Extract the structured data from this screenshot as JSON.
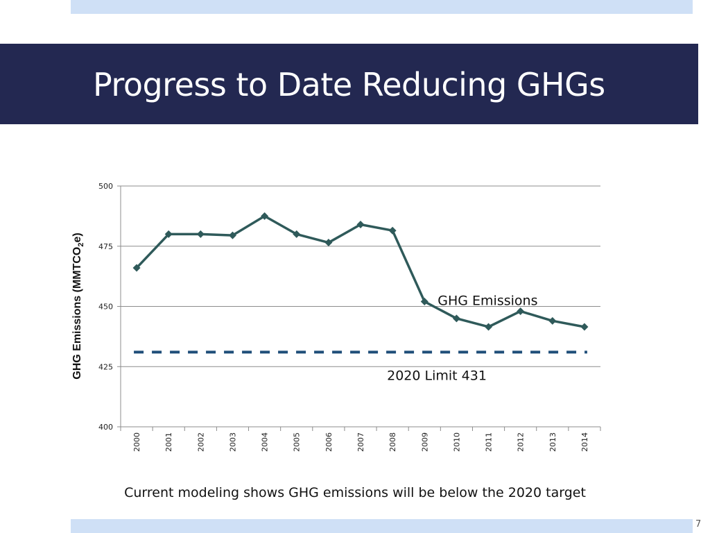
{
  "slide": {
    "title": "Progress to Date Reducing GHGs",
    "subtitle": "Current modeling shows GHG emissions will be below the 2020 target",
    "page_number": "7",
    "colors": {
      "title_bar": "#232851",
      "accent_band": "#cfe0f6",
      "series_line": "#2f5a5a",
      "limit_line": "#1f4e79"
    }
  },
  "chart_data": {
    "type": "line",
    "title": "",
    "xlabel": "",
    "ylabel_main": "GHG Emissions (MMTCO",
    "ylabel_sub": "2",
    "ylabel_tail": "e)",
    "ylim": [
      400,
      500
    ],
    "yticks": [
      "500",
      "475",
      "450",
      "425",
      "400"
    ],
    "ytick_values": [
      500,
      475,
      450,
      425,
      400
    ],
    "categories": [
      "2000",
      "2001",
      "2002",
      "2003",
      "2004",
      "2005",
      "2006",
      "2007",
      "2008",
      "2009",
      "2010",
      "2011",
      "2012",
      "2013",
      "2014"
    ],
    "series": [
      {
        "name": "GHG Emissions",
        "values": [
          466,
          480,
          480,
          479.5,
          487.5,
          480,
          476.5,
          484,
          481.5,
          452,
          445,
          441.5,
          448,
          444,
          441.5
        ]
      }
    ],
    "reference_line": {
      "label": "2020 Limit 431",
      "value": 431,
      "style": "dashed"
    },
    "annotations": {
      "series_label": "GHG Emissions",
      "limit_label": "2020 Limit 431"
    },
    "grid": true
  }
}
